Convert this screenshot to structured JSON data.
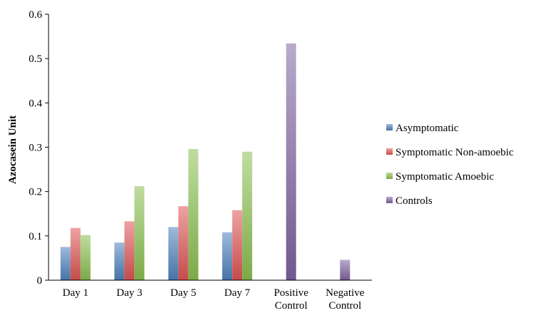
{
  "chart_data": {
    "type": "bar",
    "title": "",
    "xlabel": "",
    "ylabel": "Azocasein Unit",
    "ylim": [
      0,
      0.6
    ],
    "yticks": [
      "0",
      "0.1",
      "0.2",
      "0.3",
      "0.4",
      "0.5",
      "0.6"
    ],
    "grid": false,
    "legend_position": "right",
    "categories": [
      [
        "Day 1"
      ],
      [
        "Day 3"
      ],
      [
        "Day 5"
      ],
      [
        "Day 7"
      ],
      [
        "Positive",
        "Control"
      ],
      [
        "Negative",
        "Control"
      ]
    ],
    "series": [
      {
        "name": "Asymptomatic",
        "color": "#4f81bd",
        "values": [
          0.075,
          0.085,
          0.12,
          0.108,
          null,
          null
        ]
      },
      {
        "name": "Symptomatic Non-amoebic",
        "color": "#e05555",
        "values": [
          0.118,
          0.133,
          0.167,
          0.158,
          null,
          null
        ]
      },
      {
        "name": "Symptomatic Amoebic",
        "color": "#8cc152",
        "values": [
          0.102,
          0.212,
          0.296,
          0.29,
          null,
          null
        ]
      },
      {
        "name": "Controls",
        "color": "#8064a2",
        "values": [
          null,
          null,
          null,
          null,
          0.534,
          0.046
        ]
      }
    ]
  }
}
